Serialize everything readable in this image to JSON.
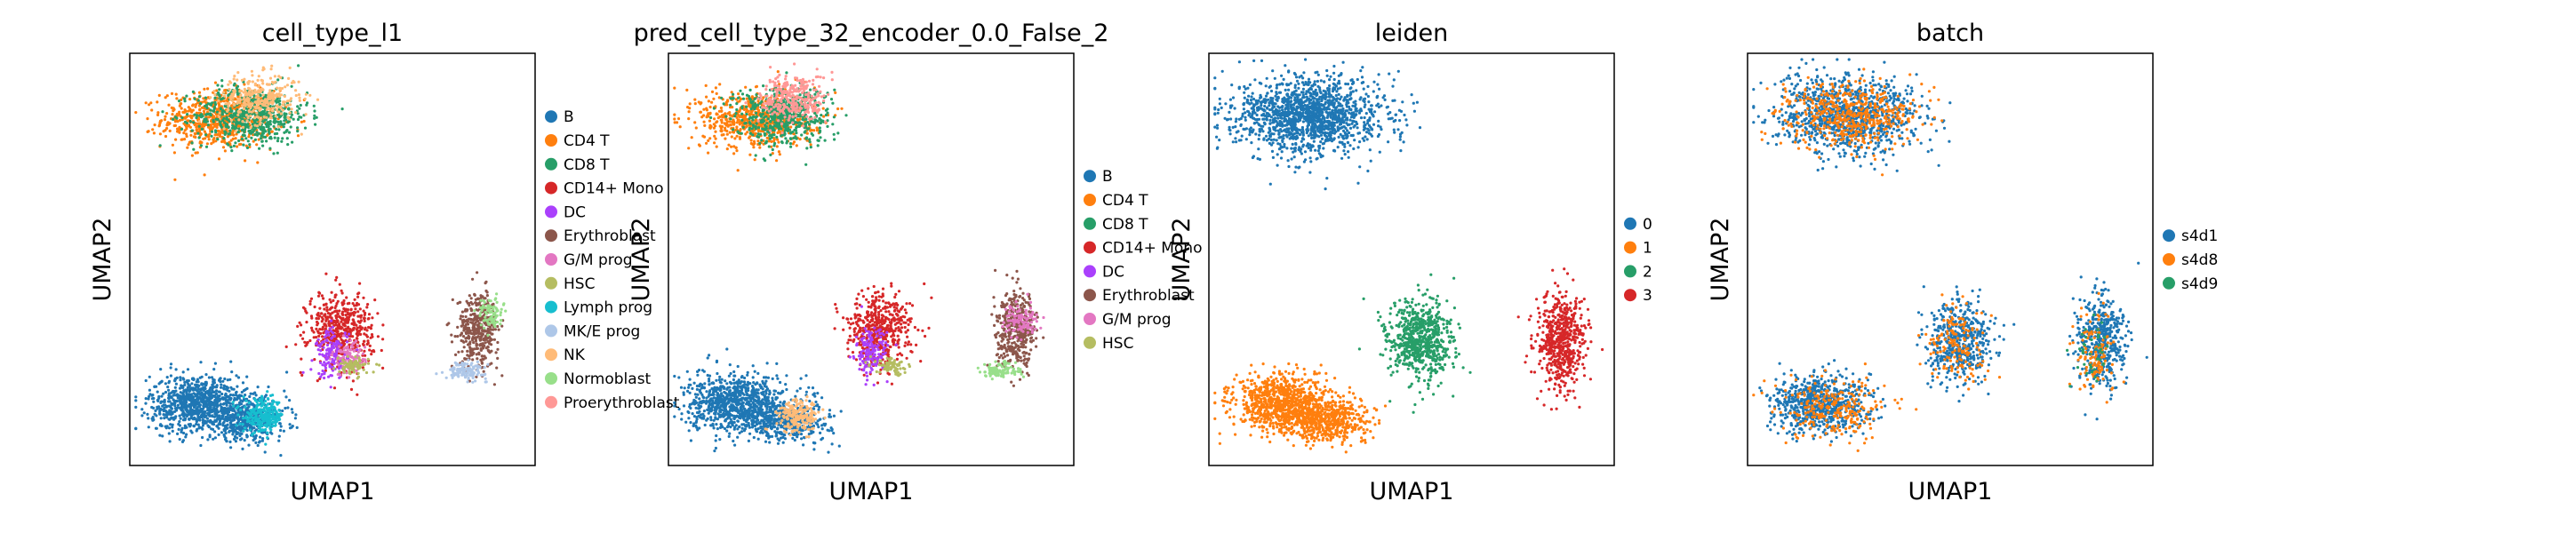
{
  "chart_data": [
    {
      "type": "scatter",
      "title": "cell_type_l1",
      "xlabel": "UMAP1",
      "ylabel": "UMAP2",
      "ticks": "none",
      "legend_position": "right",
      "legend": [
        {
          "label": "B",
          "color": "#1f77b4"
        },
        {
          "label": "CD4 T",
          "color": "#ff7f0e"
        },
        {
          "label": "CD8 T",
          "color": "#279e68"
        },
        {
          "label": "CD14+ Mono",
          "color": "#d62728"
        },
        {
          "label": "DC",
          "color": "#aa40fc"
        },
        {
          "label": "Erythroblast",
          "color": "#8c564b"
        },
        {
          "label": "G/M prog",
          "color": "#e377c2"
        },
        {
          "label": "HSC",
          "color": "#b5bd61"
        },
        {
          "label": "Lymph prog",
          "color": "#17becf"
        },
        {
          "label": "MK/E prog",
          "color": "#aec7e8"
        },
        {
          "label": "NK",
          "color": "#ffbb78"
        },
        {
          "label": "Normoblast",
          "color": "#98df8a"
        },
        {
          "label": "Proerythroblast",
          "color": "#ff9896"
        }
      ],
      "clusters": [
        {
          "label": "CD4 T",
          "x": 0.22,
          "y": 0.84,
          "sx": 0.07,
          "sy": 0.035,
          "n": 700
        },
        {
          "label": "CD8 T",
          "x": 0.3,
          "y": 0.85,
          "sx": 0.07,
          "sy": 0.035,
          "n": 600
        },
        {
          "label": "NK",
          "x": 0.32,
          "y": 0.89,
          "sx": 0.05,
          "sy": 0.03,
          "n": 300
        },
        {
          "label": "B",
          "x": 0.17,
          "y": 0.15,
          "sx": 0.06,
          "sy": 0.035,
          "n": 900
        },
        {
          "label": "B",
          "x": 0.29,
          "y": 0.11,
          "sx": 0.05,
          "sy": 0.025,
          "n": 400
        },
        {
          "label": "Lymph prog",
          "x": 0.33,
          "y": 0.12,
          "sx": 0.025,
          "sy": 0.02,
          "n": 250
        },
        {
          "label": "CD14+ Mono",
          "x": 0.52,
          "y": 0.33,
          "sx": 0.04,
          "sy": 0.045,
          "n": 500
        },
        {
          "label": "DC",
          "x": 0.5,
          "y": 0.27,
          "sx": 0.02,
          "sy": 0.03,
          "n": 150
        },
        {
          "label": "G/M prog",
          "x": 0.54,
          "y": 0.26,
          "sx": 0.02,
          "sy": 0.02,
          "n": 90
        },
        {
          "label": "HSC",
          "x": 0.55,
          "y": 0.24,
          "sx": 0.02,
          "sy": 0.01,
          "n": 80
        },
        {
          "label": "Erythroblast",
          "x": 0.86,
          "y": 0.33,
          "sx": 0.025,
          "sy": 0.045,
          "n": 400
        },
        {
          "label": "MK/E prog",
          "x": 0.83,
          "y": 0.23,
          "sx": 0.025,
          "sy": 0.01,
          "n": 120
        },
        {
          "label": "Normoblast",
          "x": 0.89,
          "y": 0.37,
          "sx": 0.015,
          "sy": 0.02,
          "n": 80
        }
      ]
    },
    {
      "type": "scatter",
      "title": "pred_cell_type_32_encoder_0.0_False_2",
      "xlabel": "UMAP1",
      "ylabel": "UMAP2",
      "ticks": "none",
      "legend_position": "right",
      "legend": [
        {
          "label": "B",
          "color": "#1f77b4"
        },
        {
          "label": "CD4 T",
          "color": "#ff7f0e"
        },
        {
          "label": "CD8 T",
          "color": "#279e68"
        },
        {
          "label": "CD14+ Mono",
          "color": "#d62728"
        },
        {
          "label": "DC",
          "color": "#aa40fc"
        },
        {
          "label": "Erythroblast",
          "color": "#8c564b"
        },
        {
          "label": "G/M prog",
          "color": "#e377c2"
        },
        {
          "label": "HSC",
          "color": "#b5bd61"
        }
      ],
      "clusters": [
        {
          "label": "CD4 T",
          "x": 0.22,
          "y": 0.84,
          "sx": 0.07,
          "sy": 0.035,
          "n": 700
        },
        {
          "label": "CD8 T",
          "x": 0.28,
          "y": 0.85,
          "sx": 0.06,
          "sy": 0.035,
          "n": 550
        },
        {
          "label": "Proerythroblast",
          "x": 0.31,
          "y": 0.89,
          "sx": 0.04,
          "sy": 0.03,
          "n": 300
        },
        {
          "label": "B",
          "x": 0.17,
          "y": 0.15,
          "sx": 0.06,
          "sy": 0.035,
          "n": 900
        },
        {
          "label": "B",
          "x": 0.3,
          "y": 0.11,
          "sx": 0.05,
          "sy": 0.025,
          "n": 400
        },
        {
          "label": "NK",
          "x": 0.32,
          "y": 0.12,
          "sx": 0.025,
          "sy": 0.02,
          "n": 200
        },
        {
          "label": "CD14+ Mono",
          "x": 0.52,
          "y": 0.33,
          "sx": 0.04,
          "sy": 0.045,
          "n": 500
        },
        {
          "label": "DC",
          "x": 0.5,
          "y": 0.27,
          "sx": 0.02,
          "sy": 0.03,
          "n": 150
        },
        {
          "label": "HSC",
          "x": 0.55,
          "y": 0.24,
          "sx": 0.02,
          "sy": 0.01,
          "n": 80
        },
        {
          "label": "Erythroblast",
          "x": 0.86,
          "y": 0.33,
          "sx": 0.025,
          "sy": 0.045,
          "n": 420
        },
        {
          "label": "G/M prog",
          "x": 0.87,
          "y": 0.35,
          "sx": 0.02,
          "sy": 0.02,
          "n": 100
        },
        {
          "label": "Normoblast",
          "x": 0.82,
          "y": 0.23,
          "sx": 0.025,
          "sy": 0.01,
          "n": 100
        }
      ]
    },
    {
      "type": "scatter",
      "title": "leiden",
      "xlabel": "UMAP1",
      "ylabel": "UMAP2",
      "ticks": "none",
      "legend_position": "right",
      "legend": [
        {
          "label": "0",
          "color": "#1f77b4"
        },
        {
          "label": "1",
          "color": "#ff7f0e"
        },
        {
          "label": "2",
          "color": "#279e68"
        },
        {
          "label": "3",
          "color": "#d62728"
        }
      ],
      "clusters": [
        {
          "label": "0",
          "x": 0.25,
          "y": 0.85,
          "sx": 0.09,
          "sy": 0.045,
          "n": 1500
        },
        {
          "label": "1",
          "x": 0.18,
          "y": 0.15,
          "sx": 0.06,
          "sy": 0.035,
          "n": 900
        },
        {
          "label": "1",
          "x": 0.3,
          "y": 0.11,
          "sx": 0.05,
          "sy": 0.025,
          "n": 500
        },
        {
          "label": "2",
          "x": 0.52,
          "y": 0.3,
          "sx": 0.04,
          "sy": 0.05,
          "n": 700
        },
        {
          "label": "3",
          "x": 0.87,
          "y": 0.3,
          "sx": 0.03,
          "sy": 0.06,
          "n": 600
        }
      ]
    },
    {
      "type": "scatter",
      "title": "batch",
      "xlabel": "UMAP1",
      "ylabel": "UMAP2",
      "ticks": "none",
      "legend_position": "right",
      "legend": [
        {
          "label": "s4d1",
          "color": "#1f77b4"
        },
        {
          "label": "s4d8",
          "color": "#ff7f0e"
        },
        {
          "label": "s4d9",
          "color": "#279e68"
        }
      ],
      "clusters": [
        {
          "label": "s4d1",
          "x": 0.25,
          "y": 0.85,
          "sx": 0.09,
          "sy": 0.045,
          "n": 1000
        },
        {
          "label": "s4d8",
          "x": 0.25,
          "y": 0.85,
          "sx": 0.08,
          "sy": 0.04,
          "n": 500
        },
        {
          "label": "s4d1",
          "x": 0.18,
          "y": 0.15,
          "sx": 0.06,
          "sy": 0.035,
          "n": 700
        },
        {
          "label": "s4d8",
          "x": 0.22,
          "y": 0.14,
          "sx": 0.07,
          "sy": 0.035,
          "n": 250
        },
        {
          "label": "s4d1",
          "x": 0.52,
          "y": 0.3,
          "sx": 0.04,
          "sy": 0.05,
          "n": 500
        },
        {
          "label": "s4d8",
          "x": 0.52,
          "y": 0.3,
          "sx": 0.035,
          "sy": 0.045,
          "n": 150
        },
        {
          "label": "s4d1",
          "x": 0.87,
          "y": 0.3,
          "sx": 0.03,
          "sy": 0.06,
          "n": 450
        },
        {
          "label": "s4d8",
          "x": 0.86,
          "y": 0.28,
          "sx": 0.025,
          "sy": 0.05,
          "n": 120
        },
        {
          "label": "s4d9",
          "x": 0.85,
          "y": 0.28,
          "sx": 0.02,
          "sy": 0.04,
          "n": 40
        }
      ]
    }
  ]
}
